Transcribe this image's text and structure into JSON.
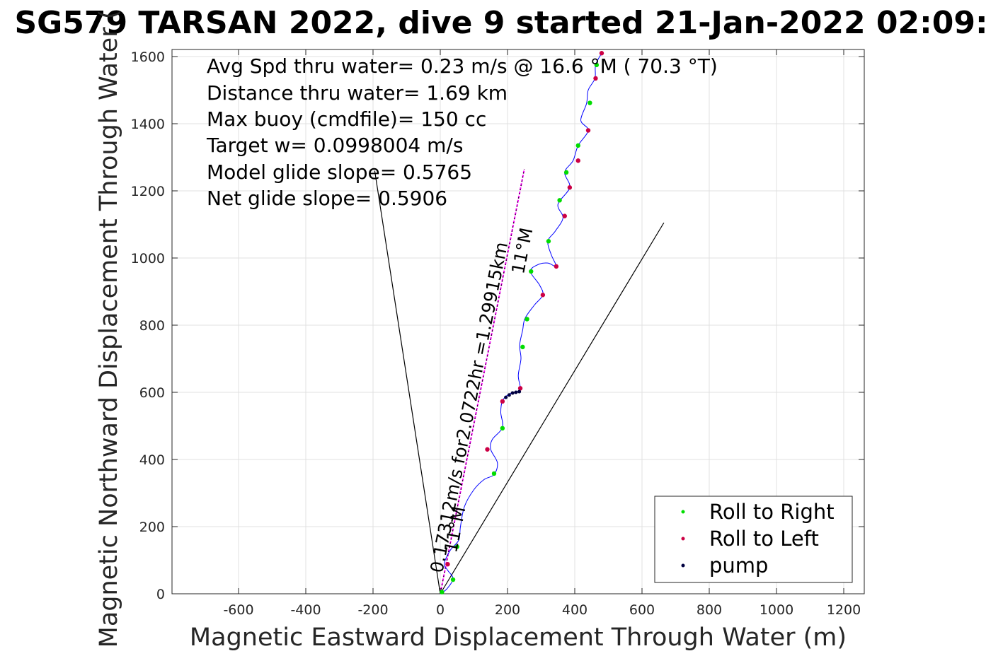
{
  "chart_data": {
    "type": "scatter",
    "title": "SG579 TARSAN 2022, dive 9 started 21-Jan-2022 02:09:",
    "xlabel": "Magnetic Eastward Displacement Through Water (m)",
    "ylabel": "Magnetic Northward Displacement Through Water (",
    "xlim": [
      -800,
      1250
    ],
    "ylim": [
      -10,
      1620
    ],
    "xticks": [
      -600,
      -400,
      -200,
      0,
      200,
      400,
      600,
      800,
      1000,
      1200
    ],
    "yticks": [
      0,
      200,
      400,
      600,
      800,
      1000,
      1200,
      1400,
      1600
    ],
    "grid": true,
    "legend_position": "bottom-right",
    "annotations": [
      "Avg Spd thru water=  0.23 m/s @  16.6 °M ( 70.3 °T)",
      "Distance thru water=  1.69 km",
      "Max buoy (cmdfile)= 150 cc",
      "Target w= 0.0998004 m/s",
      "Model glide slope= 0.5765",
      "Net glide slope= 0.5906"
    ],
    "current_label": "0.17312m/s for2.0722hr =1.29915km",
    "heading_label_upper": "11°M",
    "heading_label_lower": "11°M",
    "track": [
      [
        0,
        0
      ],
      [
        20,
        15
      ],
      [
        38,
        45
      ],
      [
        22,
        70
      ],
      [
        12,
        90
      ],
      [
        30,
        130
      ],
      [
        55,
        160
      ],
      [
        60,
        200
      ],
      [
        72,
        260
      ],
      [
        100,
        310
      ],
      [
        130,
        340
      ],
      [
        160,
        355
      ],
      [
        170,
        390
      ],
      [
        150,
        430
      ],
      [
        155,
        460
      ],
      [
        185,
        495
      ],
      [
        180,
        540
      ],
      [
        185,
        575
      ],
      [
        205,
        595
      ],
      [
        225,
        600
      ],
      [
        238,
        612
      ],
      [
        232,
        650
      ],
      [
        240,
        700
      ],
      [
        236,
        740
      ],
      [
        245,
        785
      ],
      [
        252,
        820
      ],
      [
        280,
        860
      ],
      [
        305,
        890
      ],
      [
        295,
        920
      ],
      [
        268,
        960
      ],
      [
        290,
        980
      ],
      [
        320,
        985
      ],
      [
        345,
        975
      ],
      [
        330,
        1010
      ],
      [
        320,
        1050
      ],
      [
        342,
        1080
      ],
      [
        365,
        1120
      ],
      [
        350,
        1160
      ],
      [
        385,
        1210
      ],
      [
        370,
        1255
      ],
      [
        395,
        1290
      ],
      [
        410,
        1335
      ],
      [
        440,
        1380
      ],
      [
        418,
        1410
      ],
      [
        435,
        1460
      ],
      [
        440,
        1500
      ],
      [
        460,
        1535
      ],
      [
        462,
        1575
      ],
      [
        480,
        1610
      ]
    ],
    "direction_lines": [
      {
        "name": "current",
        "from": [
          0,
          0
        ],
        "to": [
          250,
          1265
        ]
      },
      {
        "name": "left-bound",
        "from": [
          0,
          0
        ],
        "to": [
          -195,
          1260
        ]
      },
      {
        "name": "right-bound",
        "from": [
          0,
          0
        ],
        "to": [
          665,
          1105
        ]
      }
    ],
    "series": [
      {
        "name": "Roll to Right",
        "color": "#00dd00",
        "points": [
          [
            5,
            5
          ],
          [
            38,
            42
          ],
          [
            50,
            140
          ],
          [
            160,
            358
          ],
          [
            185,
            493
          ],
          [
            245,
            735
          ],
          [
            258,
            818
          ],
          [
            270,
            960
          ],
          [
            322,
            1050
          ],
          [
            355,
            1172
          ],
          [
            375,
            1255
          ],
          [
            410,
            1335
          ],
          [
            445,
            1462
          ],
          [
            465,
            1575
          ]
        ]
      },
      {
        "name": "Roll to Left",
        "color": "#cc0044",
        "points": [
          [
            22,
            88
          ],
          [
            140,
            430
          ],
          [
            185,
            573
          ],
          [
            238,
            612
          ],
          [
            305,
            890
          ],
          [
            345,
            975
          ],
          [
            370,
            1125
          ],
          [
            385,
            1210
          ],
          [
            410,
            1290
          ],
          [
            440,
            1380
          ],
          [
            462,
            1535
          ],
          [
            480,
            1610
          ]
        ]
      },
      {
        "name": "pump",
        "color": "#000040",
        "points": [
          [
            195,
            585
          ],
          [
            205,
            592
          ],
          [
            215,
            598
          ],
          [
            225,
            600
          ],
          [
            235,
            602
          ]
        ]
      }
    ],
    "colors": {
      "track": "#0000ff",
      "current_line": "#ff00ff",
      "axes": "#262626",
      "grid": "#e0e0e0"
    }
  }
}
